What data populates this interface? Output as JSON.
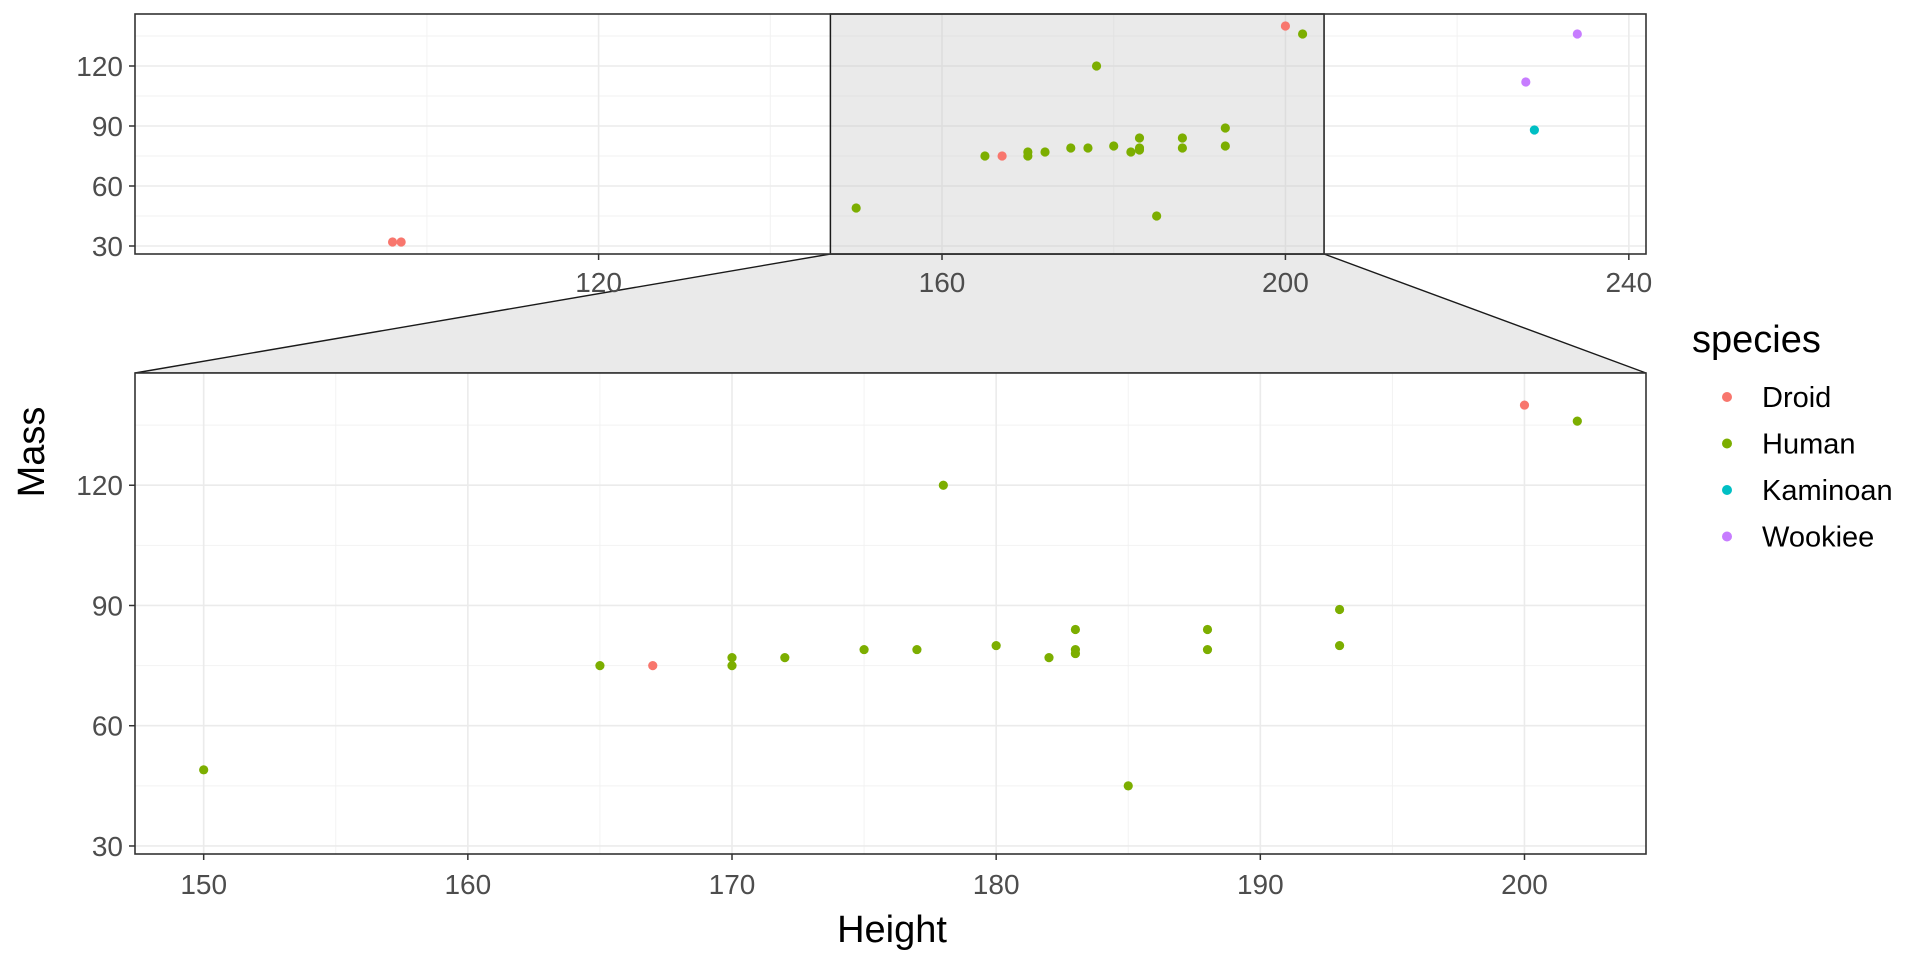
{
  "chart_data": {
    "type": "scatter",
    "xlabel": "Height",
    "ylabel": "Mass",
    "legend": {
      "title": "species",
      "position": "right",
      "entries": [
        {
          "name": "Droid",
          "color": "#F8766D"
        },
        {
          "name": "Human",
          "color": "#7CAE00"
        },
        {
          "name": "Kaminoan",
          "color": "#00BFC4"
        },
        {
          "name": "Wookiee",
          "color": "#C77CFF"
        }
      ]
    },
    "overview_panel": {
      "xlim": [
        66,
        242
      ],
      "ylim": [
        26,
        146
      ],
      "xticks": [
        120,
        160,
        200,
        240
      ],
      "yticks": [
        30,
        60,
        90,
        120
      ],
      "zoom_region_x": [
        147,
        204.5
      ],
      "grid": true
    },
    "zoom_panel": {
      "xlim": [
        147.4,
        204.6
      ],
      "ylim": [
        28,
        148
      ],
      "xticks": [
        150,
        160,
        170,
        180,
        190,
        200
      ],
      "yticks": [
        30,
        60,
        90,
        120
      ],
      "grid": true
    },
    "series": [
      {
        "name": "Droid",
        "color": "#F8766D",
        "points": [
          [
            96,
            32
          ],
          [
            97,
            32
          ],
          [
            167,
            75
          ],
          [
            200,
            140
          ]
        ]
      },
      {
        "name": "Human",
        "color": "#7CAE00",
        "points": [
          [
            150,
            49
          ],
          [
            165,
            75
          ],
          [
            170,
            77
          ],
          [
            170,
            75
          ],
          [
            172,
            77
          ],
          [
            175,
            79
          ],
          [
            177,
            79
          ],
          [
            178,
            120
          ],
          [
            180,
            80
          ],
          [
            182,
            77
          ],
          [
            183,
            84
          ],
          [
            183,
            79
          ],
          [
            183,
            78
          ],
          [
            185,
            45
          ],
          [
            188,
            84
          ],
          [
            188,
            79
          ],
          [
            193,
            89
          ],
          [
            193,
            80
          ],
          [
            202,
            136
          ]
        ]
      },
      {
        "name": "Kaminoan",
        "color": "#00BFC4",
        "points": [
          [
            229,
            88
          ]
        ]
      },
      {
        "name": "Wookiee",
        "color": "#C77CFF",
        "points": [
          [
            228,
            112
          ],
          [
            234,
            136
          ]
        ]
      }
    ]
  }
}
